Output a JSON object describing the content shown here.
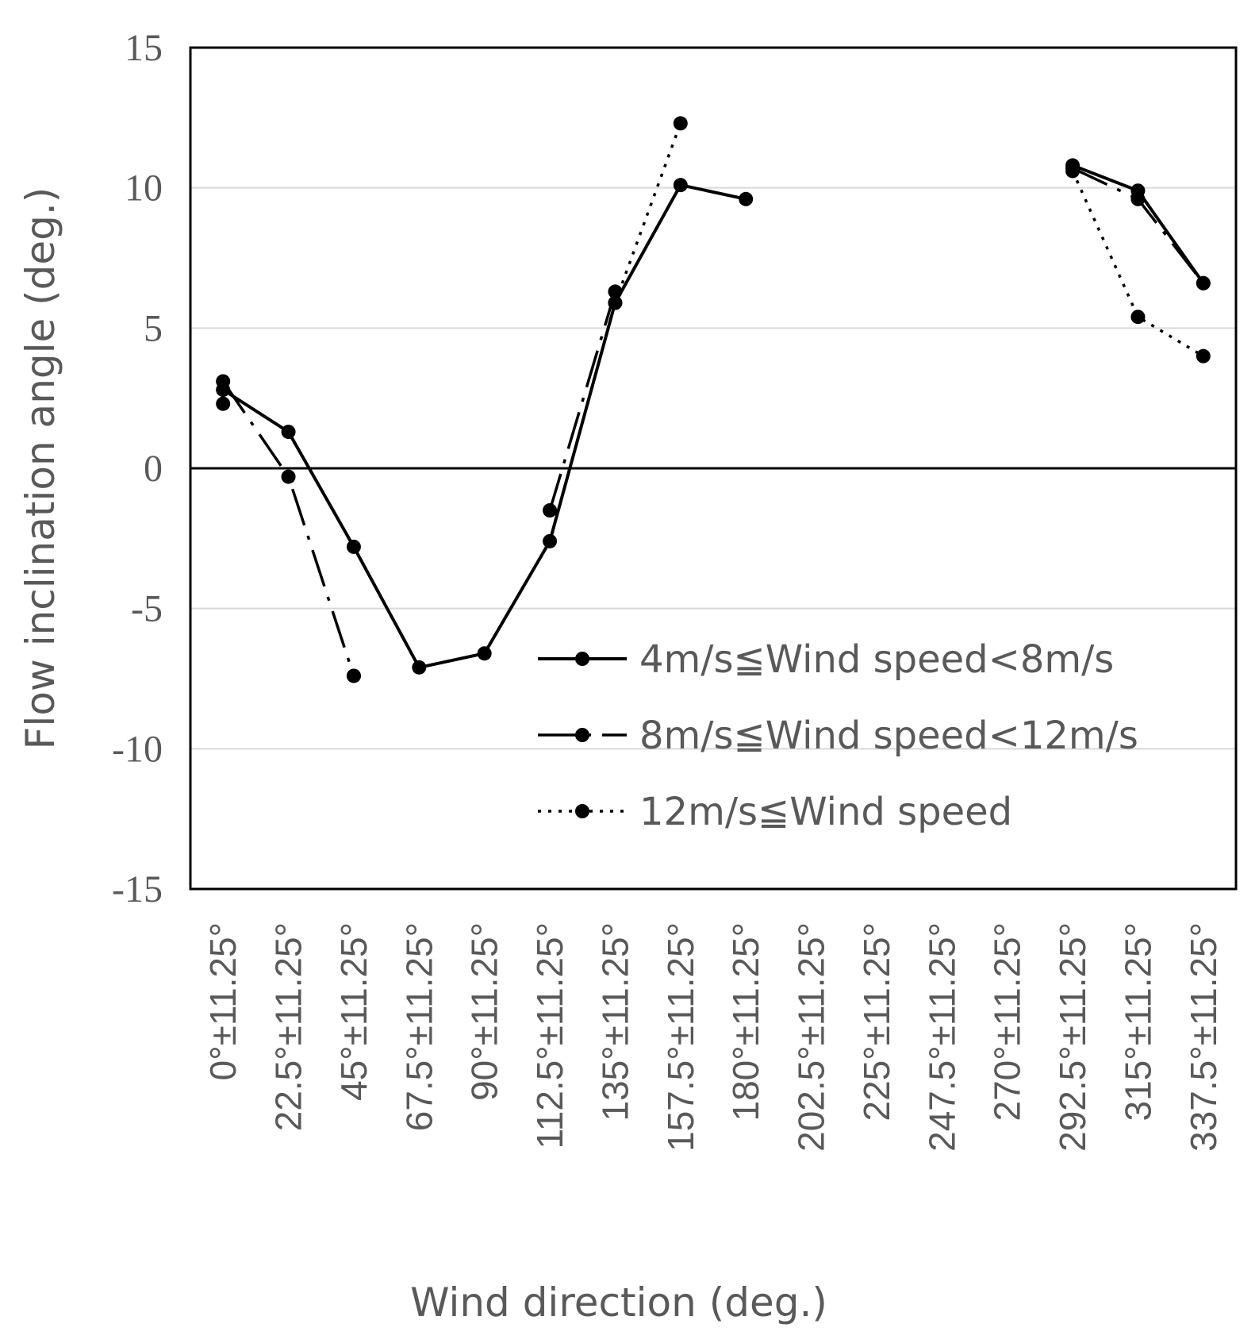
{
  "chart_data": {
    "type": "line",
    "title": "",
    "xlabel": "Wind direction (deg.)",
    "ylabel": "Flow inclination angle (deg.)",
    "ylim": [
      -15,
      15
    ],
    "yticks": [
      "15",
      "10",
      "5",
      "0",
      "-5",
      "-10",
      "-15"
    ],
    "yticks_values": [
      15,
      10,
      5,
      0,
      -5,
      -10,
      -15
    ],
    "grid": true,
    "legend_position": "center-right",
    "categories": [
      "0°±11.25°",
      "22.5°±11.25°",
      "45°±11.25°",
      "67.5°±11.25°",
      "90°±11.25°",
      "112.5°±11.25°",
      "135°±11.25°",
      "157.5°±11.25°",
      "180°±11.25°",
      "202.5°±11.25°",
      "225°±11.25°",
      "247.5°±11.25°",
      "270°±11.25°",
      "292.5°±11.25°",
      "315°±11.25°",
      "337.5°±11.25°"
    ],
    "series": [
      {
        "name": "4m/s≦Wind speed<8m/s",
        "style": "solid",
        "color": "#000000",
        "values": [
          2.8,
          1.3,
          -2.8,
          -7.1,
          -6.6,
          -2.6,
          5.9,
          10.1,
          9.6,
          null,
          null,
          null,
          null,
          10.8,
          9.9,
          6.6
        ]
      },
      {
        "name": "8m/s≦Wind speed<12m/s",
        "style": "dashdot",
        "color": "#000000",
        "values": [
          3.1,
          -0.3,
          -7.4,
          null,
          null,
          -1.5,
          6.3,
          null,
          null,
          null,
          null,
          null,
          null,
          10.7,
          9.6,
          6.6
        ]
      },
      {
        "name": "12m/s≦Wind speed",
        "style": "dotted",
        "color": "#000000",
        "values": [
          2.3,
          null,
          -7.4,
          null,
          null,
          null,
          5.9,
          12.3,
          null,
          null,
          null,
          null,
          null,
          10.6,
          5.4,
          4.0
        ]
      }
    ]
  }
}
